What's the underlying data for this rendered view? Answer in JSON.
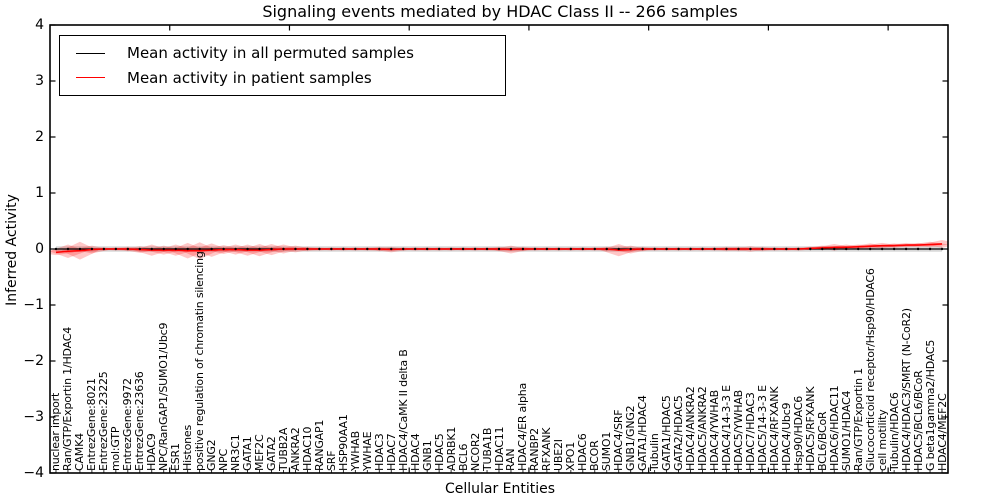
{
  "title": "Signaling events mediated by HDAC Class II -- 266 samples",
  "axes": {
    "ylabel": "Inferred Activity",
    "xlabel": "Cellular Entities",
    "ytick_labels": [
      "4",
      "3",
      "2",
      "1",
      "0",
      "−1",
      "−2",
      "−3",
      "−4"
    ],
    "ytick_values": [
      4,
      3,
      2,
      1,
      0,
      -1,
      -2,
      -3,
      -4
    ],
    "xtick_top_units": [
      10,
      20,
      30,
      40,
      50,
      60,
      70
    ]
  },
  "legend": {
    "items": [
      {
        "label": "Mean activity in all permuted samples",
        "color": "#000000"
      },
      {
        "label": "Mean activity in patient samples",
        "color": "#ff0000"
      }
    ],
    "position": "upper left"
  },
  "chart_data": {
    "type": "line",
    "title": "Signaling events mediated by HDAC Class II -- 266 samples",
    "xlabel": "Cellular Entities",
    "ylabel": "Inferred Activity",
    "ylim": [
      -4,
      4
    ],
    "grid": false,
    "legend_position": "upper left",
    "categories": [
      "nuclear import",
      "Ran/GTP/Exportin 1/HDAC4",
      "CAMK4",
      "EntrezGene:8021",
      "EntrezGene:23225",
      "mol:GTP",
      "EntrezGene:9972",
      "EntrezGene:23636",
      "HDAC9",
      "NPC/RanGAP1/SUMO1/Ubc9",
      "ESR1",
      "Histones",
      "positive regulation of chromatin silencing",
      "GNG2",
      "NPC",
      "NR3C1",
      "GATA1",
      "MEF2C",
      "GATA2",
      "TUBB2A",
      "ANKRA2",
      "HDAC10",
      "RANGAP1",
      "SRF",
      "HSP90AA1",
      "YWHAB",
      "YWHAE",
      "HDAC3",
      "HDAC7",
      "HDAC4/CaMK II delta B",
      "HDAC4",
      "GNB1",
      "HDAC5",
      "ADRBK1",
      "BCL6",
      "NCOR2",
      "TUBA1B",
      "HDAC11",
      "RAN",
      "HDAC4/ER alpha",
      "RANBP2",
      "RFXANK",
      "UBE2I",
      "XPO1",
      "HDAC6",
      "BCOR",
      "SUMO1",
      "HDAC4/SRF",
      "GNB1/GNG2",
      "GATA1/HDAC4",
      "Tubulin",
      "GATA1/HDAC5",
      "GATA2/HDAC5",
      "HDAC4/ANKRA2",
      "HDAC5/ANKRA2",
      "HDAC4/YWHAB",
      "HDAC4/14-3-3 E",
      "HDAC5/YWHAB",
      "HDAC7/HDAC3",
      "HDAC5/14-3-3 E",
      "HDAC4/RFXANK",
      "HDAC4/Ubc9",
      "Hsp90/HDAC6",
      "HDAC5/RFXANK",
      "BCL6/BCoR",
      "HDAC6/HDAC11",
      "SUMO1/HDAC4",
      "Ran/GTP/Exportin 1",
      "Glucocorticoid receptor/Hsp90/HDAC6",
      "cell motility",
      "Tubulin/HDAC6",
      "HDAC4/HDAC3/SMRT (N-CoR2)",
      "HDAC5/BCL6/BCoR",
      "G beta1gamma2/HDAC5",
      "HDAC4/MEF2C"
    ],
    "series": [
      {
        "name": "Mean activity in all permuted samples",
        "color": "#000000",
        "constant_value": 0.0,
        "band_half_width": 0.05
      },
      {
        "name": "Mean activity in patient samples",
        "color": "#ff0000",
        "values": [
          -0.06,
          -0.04,
          -0.03,
          -0.01,
          0,
          0,
          0,
          -0.01,
          -0.02,
          -0.02,
          -0.02,
          -0.03,
          -0.03,
          -0.02,
          -0.01,
          -0.01,
          -0.02,
          -0.02,
          -0.01,
          0,
          0,
          0,
          0,
          0,
          0,
          0,
          0,
          0,
          -0.01,
          0,
          0,
          0,
          0,
          0,
          0,
          0,
          0,
          0,
          -0.01,
          0,
          0,
          0,
          0,
          0,
          0,
          0,
          0,
          -0.02,
          -0.01,
          0,
          0,
          0,
          0,
          0,
          0,
          0,
          0,
          0,
          0,
          0,
          0,
          0,
          0,
          0.01,
          0.02,
          0.03,
          0.03,
          0.04,
          0.05,
          0.06,
          0.06,
          0.07,
          0.07,
          0.08,
          0.09
        ],
        "band": [
          0.05,
          0.12,
          0.16,
          0.07,
          0.03,
          0.03,
          0.04,
          0.06,
          0.1,
          0.08,
          0.1,
          0.14,
          0.15,
          0.12,
          0.08,
          0.09,
          0.1,
          0.11,
          0.1,
          0.08,
          0.06,
          0.04,
          0.03,
          0.03,
          0.03,
          0.03,
          0.03,
          0.04,
          0.05,
          0.03,
          0.03,
          0.03,
          0.03,
          0.03,
          0.03,
          0.03,
          0.03,
          0.04,
          0.07,
          0.04,
          0.03,
          0.03,
          0.03,
          0.03,
          0.03,
          0.03,
          0.04,
          0.11,
          0.07,
          0.04,
          0.03,
          0.03,
          0.03,
          0.03,
          0.03,
          0.03,
          0.04,
          0.04,
          0.05,
          0.04,
          0.03,
          0.03,
          0.03,
          0.03,
          0.04,
          0.06,
          0.05,
          0.04,
          0.05,
          0.05,
          0.04,
          0.04,
          0.04,
          0.05,
          0.07
        ]
      }
    ]
  }
}
